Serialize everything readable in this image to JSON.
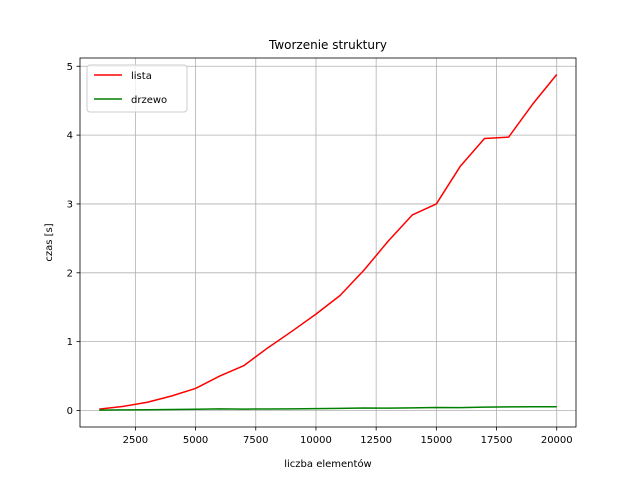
{
  "chart_data": {
    "type": "line",
    "title": "Tworzenie struktury",
    "xlabel": "liczba elementów",
    "ylabel": "czas [s]",
    "xlim": [
      200,
      20800
    ],
    "ylim": [
      -0.24,
      5.12
    ],
    "grid": true,
    "legend_position": "top-left",
    "x_ticks": [
      2500,
      5000,
      7500,
      10000,
      12500,
      15000,
      17500,
      20000
    ],
    "x_tick_labels": [
      "2500",
      "5000",
      "7500",
      "10000",
      "12500",
      "15000",
      "17500",
      "20000"
    ],
    "y_ticks": [
      0,
      1,
      2,
      3,
      4,
      5
    ],
    "y_tick_labels": [
      "0",
      "1",
      "2",
      "3",
      "4",
      "5"
    ],
    "x": [
      1000,
      2000,
      3000,
      4000,
      5000,
      6000,
      7000,
      8000,
      9000,
      10000,
      11000,
      12000,
      13000,
      14000,
      15000,
      16000,
      17000,
      18000,
      19000,
      20000
    ],
    "series": [
      {
        "name": "lista",
        "color": "#ff0000",
        "values": [
          0.02,
          0.06,
          0.12,
          0.21,
          0.32,
          0.5,
          0.65,
          0.91,
          1.15,
          1.4,
          1.67,
          2.04,
          2.46,
          2.84,
          3.0,
          3.55,
          3.95,
          3.97,
          4.45,
          4.88
        ]
      },
      {
        "name": "drzewo",
        "color": "#008000",
        "values": [
          0.005,
          0.008,
          0.011,
          0.014,
          0.017,
          0.024,
          0.02,
          0.022,
          0.024,
          0.027,
          0.03,
          0.036,
          0.034,
          0.038,
          0.044,
          0.042,
          0.048,
          0.052,
          0.054,
          0.055
        ]
      }
    ]
  }
}
